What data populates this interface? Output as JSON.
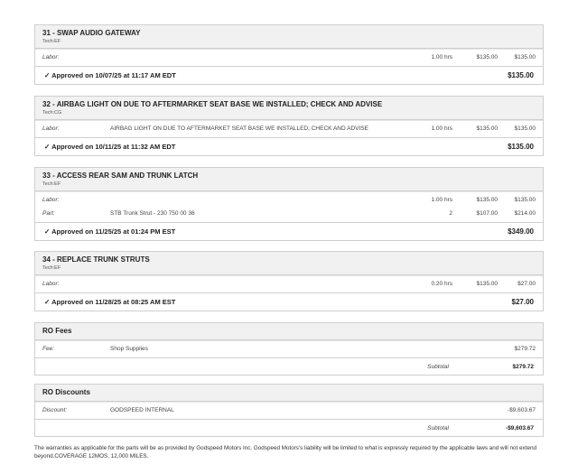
{
  "jobs": [
    {
      "title": "31 - SWAP AUDIO GATEWAY",
      "tech": "Tech:EF",
      "lines": [
        {
          "type": "Labor:",
          "desc": "",
          "qty": "1.00 hrs",
          "rate": "$135.00",
          "total": "$135.00"
        }
      ],
      "approved": "✓ Approved on 10/07/25 at 11:17 AM EDT",
      "amount": "$135.00"
    },
    {
      "title": "32 - AIRBAG LIGHT ON DUE TO AFTERMARKET SEAT BASE WE INSTALLED; CHECK AND ADVISE",
      "tech": "Tech:CG",
      "lines": [
        {
          "type": "Labor:",
          "desc": "AIRBAG LIGHT ON DUE TO AFTERMARKET SEAT BASE WE INSTALLED; CHECK AND ADVISE",
          "qty": "1.00 hrs",
          "rate": "$135.00",
          "total": "$135.00"
        }
      ],
      "approved": "✓ Approved on 10/11/25 at 11:32 AM EDT",
      "amount": "$135.00"
    },
    {
      "title": "33 - ACCESS REAR SAM AND TRUNK LATCH",
      "tech": "Tech:EF",
      "lines": [
        {
          "type": "Labor:",
          "desc": "",
          "qty": "1.00 hrs",
          "rate": "$135.00",
          "total": "$135.00"
        },
        {
          "type": "Part:",
          "desc": "STB Trunk Strut - 230 750 00 36",
          "qty": "2",
          "rate": "$107.00",
          "total": "$214.00"
        }
      ],
      "approved": "✓ Approved on 11/25/25 at 01:24 PM EST",
      "amount": "$349.00"
    },
    {
      "title": "34 - REPLACE TRUNK STRUTS",
      "tech": "Tech:EF",
      "lines": [
        {
          "type": "Labor:",
          "desc": "",
          "qty": "0.20 hrs",
          "rate": "$135.00",
          "total": "$27.00"
        }
      ],
      "approved": "✓ Approved on 11/28/25 at 08:25 AM EST",
      "amount": "$27.00"
    }
  ],
  "fees": {
    "title": "RO Fees",
    "type": "Fee:",
    "desc": "Shop Supplies",
    "total": "$279.72",
    "subtotal_label": "Subtotal",
    "subtotal": "$279.72"
  },
  "discounts": {
    "title": "RO Discounts",
    "type": "Discount:",
    "desc": "GODSPEED INTERNAL",
    "total": "-$9,603.67",
    "subtotal_label": "Subtotal",
    "subtotal": "-$9,603.67"
  },
  "footer": "The warranties as applicable for the parts will be as provided by Godspeed Motors Inc. Godspeed Motors's liability will be limited to what is expressly required by the applicable laws and will not extend beyond.COVERAGE 12MOS, 12,000 MILES."
}
